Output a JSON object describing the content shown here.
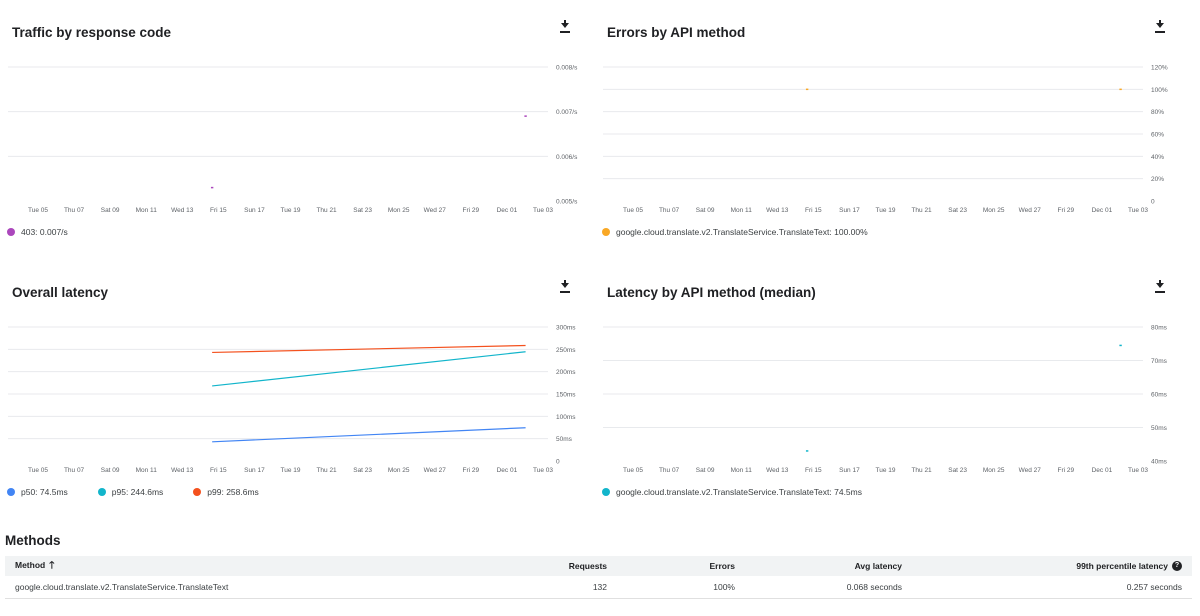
{
  "charts": {
    "traffic": {
      "title": "Traffic by response code",
      "download_icon": "download-icon",
      "legend": [
        {
          "label": "403: 0.007/s",
          "color": "#ab47bc"
        }
      ]
    },
    "errors": {
      "title": "Errors by API method",
      "download_icon": "download-icon",
      "legend": [
        {
          "label": "google.cloud.translate.v2.TranslateService.TranslateText: 100.00%",
          "color": "#f9a825"
        }
      ]
    },
    "latency": {
      "title": "Overall latency",
      "download_icon": "download-icon",
      "legend": [
        {
          "label": "p50: 74.5ms",
          "color": "#4285f4"
        },
        {
          "label": "p95: 244.6ms",
          "color": "#12b5cb"
        },
        {
          "label": "p99: 258.6ms",
          "color": "#f4511e"
        }
      ]
    },
    "latency_method": {
      "title": "Latency by API method (median)",
      "download_icon": "download-icon",
      "legend": [
        {
          "label": "google.cloud.translate.v2.TranslateService.TranslateText: 74.5ms",
          "color": "#12b5cb"
        }
      ]
    }
  },
  "chart_data": [
    {
      "type": "line",
      "title": "Traffic by response code",
      "x_ticks": [
        "Tue 05",
        "Thu 07",
        "Sat 09",
        "Mon 11",
        "Wed 13",
        "Fri 15",
        "Sun 17",
        "Tue 19",
        "Thu 21",
        "Sat 23",
        "Mon 25",
        "Wed 27",
        "Fri 29",
        "Dec 01",
        "Tue 03"
      ],
      "x_range": [
        0,
        29
      ],
      "y_ticks": [
        "0.005/s",
        "0.006/s",
        "0.007/s",
        "0.008/s"
      ],
      "y_range": [
        0.005,
        0.008
      ],
      "series": [
        {
          "name": "403",
          "color": "#ab47bc",
          "points": [
            [
              10,
              0.0053
            ],
            [
              28,
              0.0069
            ]
          ]
        }
      ]
    },
    {
      "type": "line",
      "title": "Errors by API method",
      "x_ticks": [
        "Tue 05",
        "Thu 07",
        "Sat 09",
        "Mon 11",
        "Wed 13",
        "Fri 15",
        "Sun 17",
        "Tue 19",
        "Thu 21",
        "Sat 23",
        "Mon 25",
        "Wed 27",
        "Fri 29",
        "Dec 01",
        "Tue 03"
      ],
      "x_range": [
        0,
        29
      ],
      "y_ticks": [
        "0",
        "20%",
        "40%",
        "60%",
        "80%",
        "100%",
        "120%"
      ],
      "y_range": [
        0,
        120
      ],
      "series": [
        {
          "name": "google.cloud.translate.v2.TranslateService.TranslateText",
          "color": "#f9a825",
          "points": [
            [
              10,
              100
            ],
            [
              28,
              100
            ]
          ]
        }
      ]
    },
    {
      "type": "line",
      "title": "Overall latency",
      "x_ticks": [
        "Tue 05",
        "Thu 07",
        "Sat 09",
        "Mon 11",
        "Wed 13",
        "Fri 15",
        "Sun 17",
        "Tue 19",
        "Thu 21",
        "Sat 23",
        "Mon 25",
        "Wed 27",
        "Fri 29",
        "Dec 01",
        "Tue 03"
      ],
      "x_range": [
        0,
        29
      ],
      "y_ticks": [
        "0",
        "50ms",
        "100ms",
        "150ms",
        "200ms",
        "250ms",
        "300ms"
      ],
      "y_range": [
        0,
        300
      ],
      "series": [
        {
          "name": "p50",
          "color": "#4285f4",
          "points": [
            [
              10,
              43
            ],
            [
              28,
              74.5
            ]
          ]
        },
        {
          "name": "p95",
          "color": "#12b5cb",
          "points": [
            [
              10,
              168
            ],
            [
              28,
              244.6
            ]
          ]
        },
        {
          "name": "p99",
          "color": "#f4511e",
          "points": [
            [
              10,
              243
            ],
            [
              28,
              258.6
            ]
          ]
        }
      ]
    },
    {
      "type": "line",
      "title": "Latency by API method (median)",
      "x_ticks": [
        "Tue 05",
        "Thu 07",
        "Sat 09",
        "Mon 11",
        "Wed 13",
        "Fri 15",
        "Sun 17",
        "Tue 19",
        "Thu 21",
        "Sat 23",
        "Mon 25",
        "Wed 27",
        "Fri 29",
        "Dec 01",
        "Tue 03"
      ],
      "x_range": [
        0,
        29
      ],
      "y_ticks": [
        "40ms",
        "50ms",
        "60ms",
        "70ms",
        "80ms"
      ],
      "y_range": [
        40,
        80
      ],
      "series": [
        {
          "name": "google.cloud.translate.v2.TranslateService.TranslateText",
          "color": "#12b5cb",
          "points": [
            [
              10,
              43
            ],
            [
              28,
              74.5
            ]
          ]
        }
      ]
    }
  ],
  "methods": {
    "title": "Methods",
    "sort_icon": "arrow-up-icon",
    "help_icon": "help-icon",
    "columns": {
      "method": "Method",
      "requests": "Requests",
      "errors": "Errors",
      "avg_latency": "Avg latency",
      "p99_latency": "99th percentile latency"
    },
    "rows": [
      {
        "method": "google.cloud.translate.v2.TranslateService.TranslateText",
        "requests": "132",
        "errors": "100%",
        "avg_latency": "0.068 seconds",
        "p99_latency": "0.257 seconds"
      }
    ]
  }
}
